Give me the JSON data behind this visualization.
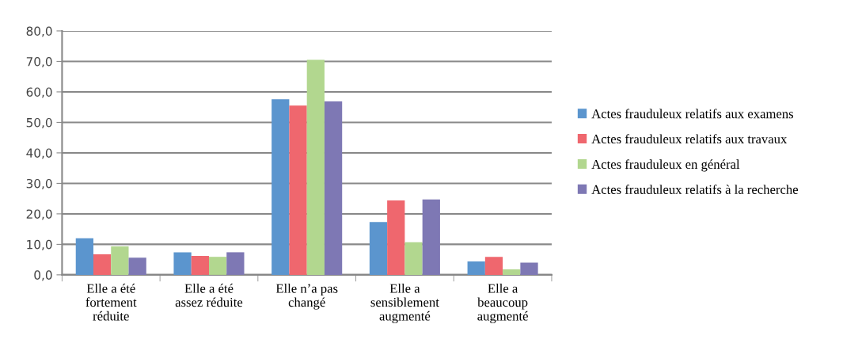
{
  "chart_data": {
    "type": "bar",
    "categories": [
      "Elle a été\nfortement\nréduite",
      "Elle a été\nassez réduite",
      "Elle n’a pas\nchangé",
      "Elle a\nsensiblement\naugmenté",
      "Elle a\nbeaucoup\naugmenté"
    ],
    "series": [
      {
        "name": "Actes frauduleux relatifs aux examens",
        "color": "#5b95ce",
        "values": [
          12.0,
          7.4,
          57.6,
          17.3,
          4.4
        ]
      },
      {
        "name": "Actes frauduleux relatifs aux travaux",
        "color": "#ef676e",
        "values": [
          6.7,
          6.2,
          55.5,
          24.4,
          5.9
        ]
      },
      {
        "name": "Actes frauduleux en général",
        "color": "#b2d78f",
        "values": [
          9.3,
          5.9,
          70.5,
          10.7,
          1.8
        ]
      },
      {
        "name": "Actes frauduleux relatifs à la recherche",
        "color": "#7e78b4",
        "values": [
          5.6,
          7.4,
          56.9,
          24.7,
          4.0
        ]
      }
    ],
    "ylim": [
      0,
      80
    ],
    "yticks": [
      {
        "value": 0,
        "label": "0,0"
      },
      {
        "value": 10,
        "label": "10,0"
      },
      {
        "value": 20,
        "label": "20,0"
      },
      {
        "value": 30,
        "label": "30,0"
      },
      {
        "value": 40,
        "label": "40,0"
      },
      {
        "value": 50,
        "label": "50,0"
      },
      {
        "value": 60,
        "label": "60,0"
      },
      {
        "value": 70,
        "label": "70,0"
      },
      {
        "value": 80,
        "label": "80,0"
      }
    ],
    "grid": "y",
    "legend": "right"
  }
}
